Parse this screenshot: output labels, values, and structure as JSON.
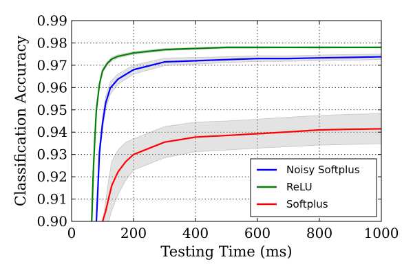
{
  "chart_data": {
    "type": "line",
    "xlabel": "Testing Time (ms)",
    "ylabel": "Classification Accuracy",
    "xlim": [
      0,
      1000
    ],
    "ylim": [
      0.9,
      0.99
    ],
    "xticks": [
      "0",
      "200",
      "400",
      "600",
      "800",
      "1000"
    ],
    "yticks": [
      "0.90",
      "0.91",
      "0.92",
      "0.93",
      "0.94",
      "0.95",
      "0.96",
      "0.97",
      "0.98",
      "0.99"
    ],
    "grid": true,
    "legend_position": "lower-right",
    "series": [
      {
        "name": "Noisy Softplus",
        "color": "#0000ff",
        "x": [
          80,
          85,
          90,
          100,
          110,
          125,
          150,
          200,
          300,
          400,
          500,
          600,
          700,
          800,
          900,
          1000
        ],
        "y": [
          0.9,
          0.915,
          0.931,
          0.944,
          0.953,
          0.9598,
          0.9638,
          0.968,
          0.9715,
          0.972,
          0.9725,
          0.973,
          0.973,
          0.9733,
          0.9735,
          0.9738
        ],
        "band_lower": [
          0.9,
          0.912,
          0.928,
          0.941,
          0.95,
          0.957,
          0.9615,
          0.966,
          0.9698,
          0.9705,
          0.9712,
          0.9717,
          0.9718,
          0.972,
          0.9722,
          0.9726
        ],
        "band_upper": [
          0.9,
          0.918,
          0.934,
          0.947,
          0.956,
          0.9626,
          0.9661,
          0.97,
          0.9732,
          0.9735,
          0.9738,
          0.9743,
          0.9742,
          0.9746,
          0.9748,
          0.975
        ]
      },
      {
        "name": "ReLU",
        "color": "#008000",
        "x": [
          65,
          70,
          75,
          80,
          90,
          100,
          115,
          130,
          150,
          200,
          300,
          400,
          500,
          600,
          700,
          800,
          900,
          1000
        ],
        "y": [
          0.9,
          0.922,
          0.937,
          0.95,
          0.9615,
          0.9675,
          0.9708,
          0.9728,
          0.974,
          0.9755,
          0.977,
          0.9775,
          0.978,
          0.978,
          0.978,
          0.978,
          0.978,
          0.978
        ],
        "band_lower": [
          0.9,
          0.921,
          0.9362,
          0.9492,
          0.9607,
          0.9667,
          0.97,
          0.972,
          0.9733,
          0.9749,
          0.9765,
          0.9771,
          0.9776,
          0.9776,
          0.9777,
          0.9776,
          0.9777,
          0.9777
        ],
        "band_upper": [
          0.9,
          0.923,
          0.9378,
          0.9508,
          0.9623,
          0.9683,
          0.9716,
          0.9736,
          0.9747,
          0.9761,
          0.9775,
          0.9779,
          0.9784,
          0.9784,
          0.9783,
          0.9784,
          0.9783,
          0.9784
        ]
      },
      {
        "name": "Softplus",
        "color": "#ff0000",
        "x": [
          100,
          110,
          120,
          130,
          150,
          175,
          200,
          300,
          400,
          500,
          600,
          700,
          800,
          900,
          1000
        ],
        "y": [
          0.9,
          0.9045,
          0.9105,
          0.9162,
          0.9222,
          0.9268,
          0.93,
          0.9355,
          0.9378,
          0.9385,
          0.9393,
          0.9401,
          0.941,
          0.9413,
          0.9415
        ],
        "band_lower": [
          0.9,
          0.9,
          0.9,
          0.905,
          0.912,
          0.9185,
          0.923,
          0.9285,
          0.9312,
          0.932,
          0.9328,
          0.9335,
          0.9342,
          0.9345,
          0.9348
        ],
        "band_upper": [
          0.9,
          0.909,
          0.919,
          0.927,
          0.932,
          0.9355,
          0.937,
          0.9425,
          0.9445,
          0.945,
          0.9458,
          0.9467,
          0.9475,
          0.948,
          0.9483
        ]
      }
    ]
  }
}
